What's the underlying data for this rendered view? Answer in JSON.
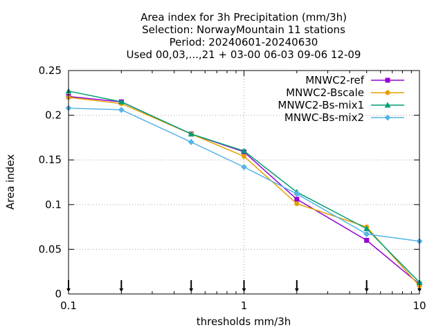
{
  "chart_data": {
    "type": "line",
    "title_lines": [
      "Area index  for 3h Precipitation (mm/3h)",
      "Selection: NorwayMountain     11 stations",
      "Period: 20240601-20240630",
      "Used 00,03,...,21 + 03-00 06-03 09-06 12-09"
    ],
    "xlabel": "thresholds mm/3h",
    "ylabel": "Area index",
    "x_scale": "log",
    "xlim": [
      0.1,
      10
    ],
    "ylim": [
      0,
      0.25
    ],
    "x_ticks": [
      {
        "value": 0.1,
        "label": "0.1"
      },
      {
        "value": 1,
        "label": "1"
      },
      {
        "value": 10,
        "label": "10"
      }
    ],
    "y_ticks": [
      {
        "value": 0,
        "label": "0"
      },
      {
        "value": 0.05,
        "label": "0.05"
      },
      {
        "value": 0.1,
        "label": "0.1"
      },
      {
        "value": 0.15,
        "label": "0.15"
      },
      {
        "value": 0.2,
        "label": "0.2"
      },
      {
        "value": 0.25,
        "label": "0.25"
      }
    ],
    "grid": true,
    "legend_position": "top-right",
    "x": [
      0.1,
      0.2,
      0.5,
      1,
      2,
      5,
      10
    ],
    "series": [
      {
        "name": "MNWC2-ref",
        "color": "#9400d3",
        "marker": "filled-square",
        "values": [
          0.221,
          0.215,
          0.179,
          0.159,
          0.106,
          0.06,
          0.011
        ]
      },
      {
        "name": "MNWC2-Bscale",
        "color": "#e69f00",
        "marker": "filled-circle",
        "values": [
          0.22,
          0.213,
          0.179,
          0.154,
          0.101,
          0.075,
          0.009
        ]
      },
      {
        "name": "MNWC2-Bs-mix1",
        "color": "#009e73",
        "marker": "filled-triangle",
        "values": [
          0.227,
          0.215,
          0.179,
          0.16,
          0.114,
          0.073,
          0.013
        ]
      },
      {
        "name": "MNWC-Bs-mix2",
        "color": "#56b4e9",
        "marker": "filled-diamond",
        "values": [
          0.208,
          0.206,
          0.17,
          0.142,
          0.112,
          0.067,
          0.059
        ]
      }
    ],
    "x_markers": [
      0.1,
      0.2,
      0.5,
      1,
      2,
      5,
      10
    ]
  }
}
